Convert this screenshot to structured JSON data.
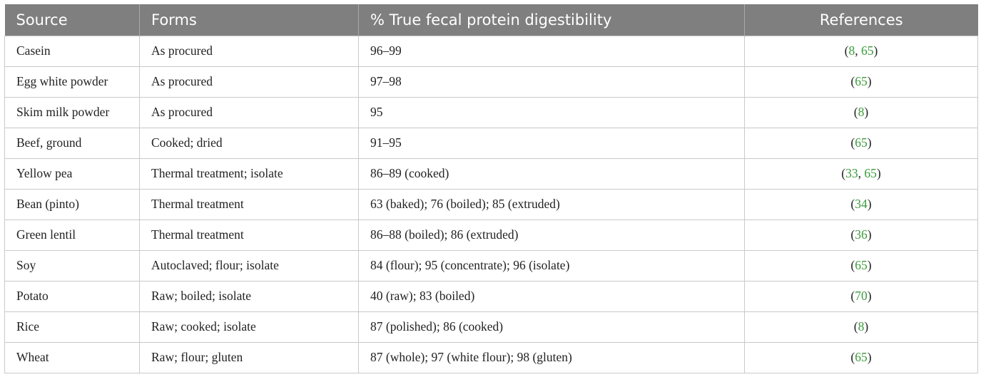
{
  "table": {
    "headers": [
      "Source",
      "Forms",
      "% True fecal protein digestibility",
      "References"
    ],
    "rows": [
      {
        "source": "Casein",
        "forms": "As procured",
        "digestibility": "96–99",
        "refs": [
          "8",
          "65"
        ]
      },
      {
        "source": "Egg white powder",
        "forms": "As procured",
        "digestibility": "97–98",
        "refs": [
          "65"
        ]
      },
      {
        "source": "Skim milk powder",
        "forms": "As procured",
        "digestibility": "95",
        "refs": [
          "8"
        ]
      },
      {
        "source": "Beef, ground",
        "forms": "Cooked; dried",
        "digestibility": "91–95",
        "refs": [
          "65"
        ]
      },
      {
        "source": "Yellow pea",
        "forms": "Thermal treatment; isolate",
        "digestibility": "86–89 (cooked)",
        "refs": [
          "33",
          "65"
        ]
      },
      {
        "source": "Bean (pinto)",
        "forms": "Thermal treatment",
        "digestibility": "63 (baked); 76 (boiled); 85 (extruded)",
        "refs": [
          "34"
        ]
      },
      {
        "source": "Green lentil",
        "forms": "Thermal treatment",
        "digestibility": "86–88 (boiled); 86 (extruded)",
        "refs": [
          "36"
        ]
      },
      {
        "source": "Soy",
        "forms": "Autoclaved; flour; isolate",
        "digestibility": "84 (flour); 95 (concentrate); 96 (isolate)",
        "refs": [
          "65"
        ]
      },
      {
        "source": "Potato",
        "forms": "Raw; boiled; isolate",
        "digestibility": "40 (raw); 83 (boiled)",
        "refs": [
          "70"
        ]
      },
      {
        "source": "Rice",
        "forms": "Raw; cooked; isolate",
        "digestibility": "87 (polished); 86 (cooked)",
        "refs": [
          "8"
        ]
      },
      {
        "source": "Wheat",
        "forms": "Raw; flour; gluten",
        "digestibility": "87 (whole); 97 (white flour); 98 (gluten)",
        "refs": [
          "65"
        ]
      }
    ]
  },
  "colors": {
    "header_bg": "#7f7f7f",
    "header_text": "#ffffff",
    "reference_link": "#3a9a3a"
  }
}
